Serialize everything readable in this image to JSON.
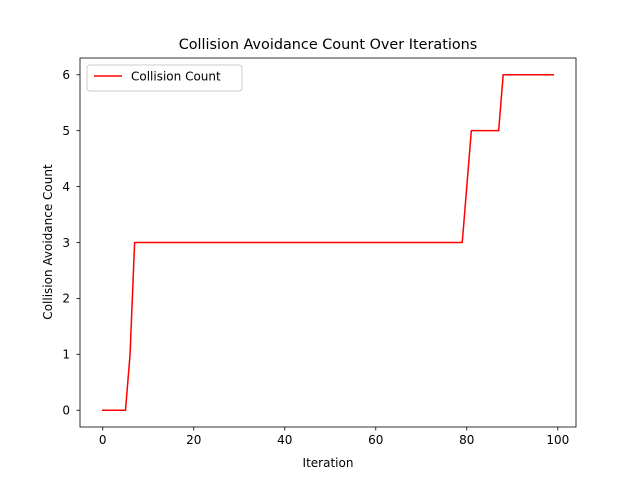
{
  "chart_data": {
    "type": "line",
    "title": "Collision Avoidance Count Over Iterations",
    "xlabel": "Iteration",
    "ylabel": "Collision Avoidance Count",
    "xlim": [
      -5,
      104
    ],
    "ylim": [
      -0.3,
      6.3
    ],
    "xticks": [
      0,
      20,
      40,
      60,
      80,
      100
    ],
    "yticks": [
      0,
      1,
      2,
      3,
      4,
      5,
      6
    ],
    "grid": false,
    "legend_position": "top-left",
    "series": [
      {
        "name": "Collision Count",
        "color": "#ff0000",
        "x": [
          0,
          5,
          6,
          7,
          79,
          80,
          81,
          87,
          88,
          99
        ],
        "y": [
          0,
          0,
          1,
          3,
          3,
          4,
          5,
          5,
          6,
          6
        ]
      }
    ]
  }
}
